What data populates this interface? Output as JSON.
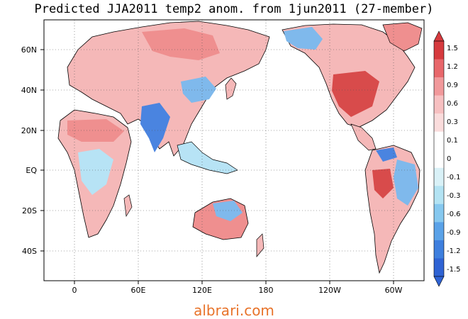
{
  "title": "Predicted JJA2011 temp2 anom. from 1jun2011 (27-member)",
  "watermark": "albrari.com",
  "lat_labels": [
    "60N",
    "40N",
    "20N",
    "EQ",
    "20S",
    "40S"
  ],
  "lon_labels": [
    "0",
    "60E",
    "120E",
    "180",
    "120W",
    "60W"
  ],
  "colorbar": {
    "labels": [
      "1.5",
      "1.2",
      "0.9",
      "0.6",
      "0.3",
      "0.1",
      "0",
      "-0.1",
      "-0.3",
      "-0.6",
      "-0.9",
      "-1.2",
      "-1.5"
    ],
    "colors": [
      "#d63a3e",
      "#e8676b",
      "#f1999b",
      "#f7c0c1",
      "#fadcdc",
      "#ffffff",
      "#ffffff",
      "#d9f1f7",
      "#b3e3f3",
      "#86c8ef",
      "#5aa2e8",
      "#3e7fde",
      "#2f63d4"
    ]
  },
  "colors": {
    "warm_light": "#f5b8b8",
    "warm_mid": "#ef8f8f",
    "warm_strong": "#d84b4b",
    "cool_light": "#b7e3f5",
    "cool_mid": "#7fb9ec",
    "cool_strong": "#4a84e0",
    "neutral": "#ffffff"
  }
}
